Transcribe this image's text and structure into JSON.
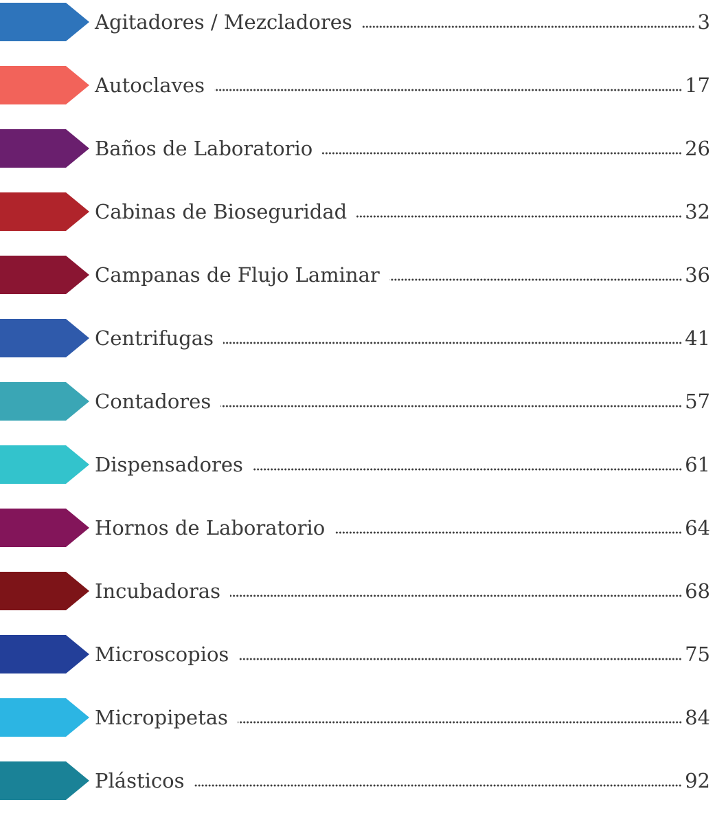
{
  "toc": {
    "items": [
      {
        "title": "Agitadores / Mezcladores",
        "page": 3,
        "color": "#2e74bb"
      },
      {
        "title": "Autoclaves",
        "page": 17,
        "color": "#f2635a"
      },
      {
        "title": "Baños de Laboratorio",
        "page": 26,
        "color": "#6a1f6e"
      },
      {
        "title": "Cabinas de Bioseguridad",
        "page": 32,
        "color": "#b0242b"
      },
      {
        "title": "Campanas de Flujo Laminar",
        "page": 36,
        "color": "#8a1532"
      },
      {
        "title": "Centrifugas",
        "page": 41,
        "color": "#2f5aab"
      },
      {
        "title": "Contadores",
        "page": 57,
        "color": "#3aa6b5"
      },
      {
        "title": "Dispensadores",
        "page": 61,
        "color": "#33c3cc"
      },
      {
        "title": "Hornos de Laboratorio",
        "page": 64,
        "color": "#83155a"
      },
      {
        "title": "Incubadoras",
        "page": 68,
        "color": "#7d1418"
      },
      {
        "title": "Microscopios",
        "page": 75,
        "color": "#233f99"
      },
      {
        "title": "Micropipetas",
        "page": 84,
        "color": "#2cb5e3"
      },
      {
        "title": "Plásticos",
        "page": 92,
        "color": "#1a8297"
      }
    ]
  }
}
